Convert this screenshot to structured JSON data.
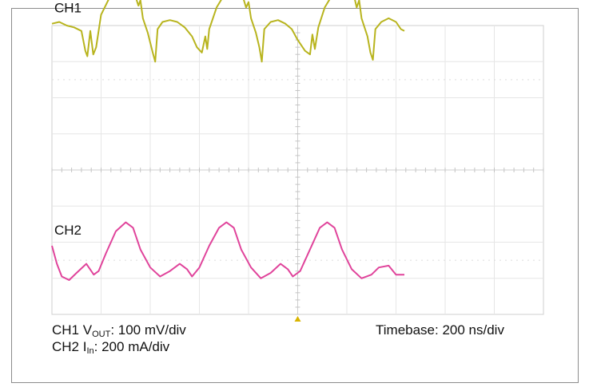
{
  "chart_data": {
    "type": "line",
    "title": "",
    "grid": true,
    "x": {
      "divisions": 10,
      "unit": "ns/div",
      "per_div": 200
    },
    "y": {
      "divisions": 8
    },
    "channel_labels": [
      "CH1",
      "CH2"
    ],
    "series": [
      {
        "name": "CH1",
        "color": "#b8b41e",
        "unit_label": "100 mV/div",
        "points": [
          [
            0.0,
            4.05
          ],
          [
            0.15,
            4.1
          ],
          [
            0.3,
            4.0
          ],
          [
            0.45,
            3.95
          ],
          [
            0.6,
            3.85
          ],
          [
            0.68,
            3.3
          ],
          [
            0.72,
            3.15
          ],
          [
            0.78,
            3.85
          ],
          [
            0.84,
            3.2
          ],
          [
            0.9,
            3.4
          ],
          [
            1.0,
            4.3
          ],
          [
            1.2,
            4.85
          ],
          [
            1.45,
            5.25
          ],
          [
            1.6,
            5.1
          ],
          [
            1.7,
            4.8
          ],
          [
            1.76,
            4.55
          ],
          [
            1.8,
            4.7
          ],
          [
            1.85,
            4.2
          ],
          [
            1.95,
            3.8
          ],
          [
            2.05,
            3.25
          ],
          [
            2.1,
            3.0
          ],
          [
            2.15,
            3.9
          ],
          [
            2.25,
            4.1
          ],
          [
            2.4,
            4.15
          ],
          [
            2.55,
            4.1
          ],
          [
            2.7,
            3.95
          ],
          [
            2.85,
            3.7
          ],
          [
            2.95,
            3.4
          ],
          [
            3.05,
            3.25
          ],
          [
            3.12,
            3.7
          ],
          [
            3.16,
            3.35
          ],
          [
            3.2,
            3.9
          ],
          [
            3.35,
            4.5
          ],
          [
            3.55,
            4.95
          ],
          [
            3.7,
            5.15
          ],
          [
            3.85,
            4.95
          ],
          [
            3.95,
            4.5
          ],
          [
            4.0,
            4.65
          ],
          [
            4.05,
            4.2
          ],
          [
            4.15,
            3.8
          ],
          [
            4.22,
            3.4
          ],
          [
            4.27,
            3.0
          ],
          [
            4.32,
            3.9
          ],
          [
            4.45,
            4.1
          ],
          [
            4.6,
            4.15
          ],
          [
            4.75,
            4.05
          ],
          [
            4.88,
            3.9
          ],
          [
            5.0,
            3.6
          ],
          [
            5.15,
            3.3
          ],
          [
            5.25,
            3.2
          ],
          [
            5.3,
            3.75
          ],
          [
            5.35,
            3.35
          ],
          [
            5.42,
            3.95
          ],
          [
            5.55,
            4.5
          ],
          [
            5.75,
            4.95
          ],
          [
            5.9,
            5.2
          ],
          [
            6.05,
            5.05
          ],
          [
            6.15,
            4.8
          ],
          [
            6.2,
            4.5
          ],
          [
            6.25,
            4.7
          ],
          [
            6.3,
            4.2
          ],
          [
            6.42,
            3.7
          ],
          [
            6.48,
            3.25
          ],
          [
            6.53,
            3.05
          ],
          [
            6.58,
            3.9
          ],
          [
            6.7,
            4.1
          ],
          [
            6.85,
            4.2
          ],
          [
            7.0,
            4.1
          ],
          [
            7.1,
            3.9
          ],
          [
            7.17,
            3.85
          ]
        ]
      },
      {
        "name": "CH2",
        "color": "#e0449b",
        "unit_label": "200 mA/div",
        "points": [
          [
            0.0,
            -2.1
          ],
          [
            0.1,
            -2.6
          ],
          [
            0.2,
            -2.95
          ],
          [
            0.35,
            -3.05
          ],
          [
            0.5,
            -2.85
          ],
          [
            0.7,
            -2.6
          ],
          [
            0.85,
            -2.9
          ],
          [
            0.95,
            -2.8
          ],
          [
            1.1,
            -2.3
          ],
          [
            1.3,
            -1.7
          ],
          [
            1.5,
            -1.45
          ],
          [
            1.65,
            -1.6
          ],
          [
            1.8,
            -2.2
          ],
          [
            2.0,
            -2.7
          ],
          [
            2.2,
            -2.95
          ],
          [
            2.4,
            -2.8
          ],
          [
            2.6,
            -2.6
          ],
          [
            2.75,
            -2.75
          ],
          [
            2.85,
            -2.95
          ],
          [
            3.0,
            -2.7
          ],
          [
            3.2,
            -2.1
          ],
          [
            3.4,
            -1.6
          ],
          [
            3.55,
            -1.45
          ],
          [
            3.7,
            -1.6
          ],
          [
            3.85,
            -2.2
          ],
          [
            4.05,
            -2.7
          ],
          [
            4.25,
            -3.0
          ],
          [
            4.45,
            -2.85
          ],
          [
            4.65,
            -2.6
          ],
          [
            4.8,
            -2.75
          ],
          [
            4.9,
            -2.95
          ],
          [
            5.05,
            -2.8
          ],
          [
            5.25,
            -2.2
          ],
          [
            5.45,
            -1.6
          ],
          [
            5.6,
            -1.45
          ],
          [
            5.75,
            -1.6
          ],
          [
            5.9,
            -2.2
          ],
          [
            6.1,
            -2.75
          ],
          [
            6.3,
            -3.0
          ],
          [
            6.5,
            -2.9
          ],
          [
            6.65,
            -2.7
          ],
          [
            6.85,
            -2.65
          ],
          [
            7.0,
            -2.9
          ],
          [
            7.17,
            -2.9
          ]
        ]
      }
    ]
  },
  "captions": {
    "ch1_prefix": "CH1 V",
    "ch1_sub": "OUT",
    "ch1_suffix": ": 100 mV/div",
    "ch2_prefix": "CH2 I",
    "ch2_sub": "In",
    "ch2_suffix": ": 200 mA/div",
    "timebase": "Timebase: 200 ns/div"
  }
}
